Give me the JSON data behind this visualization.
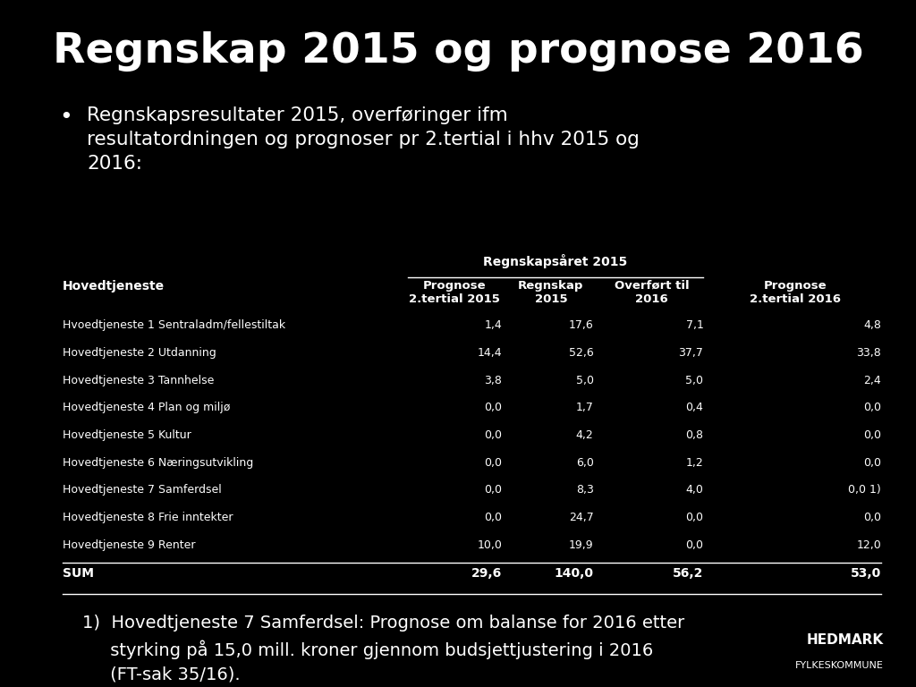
{
  "title": "Regnskap 2015 og prognose 2016",
  "bullet_text": "Regnskapsresultater 2015, overføringer ifm\nresultatordningen og prognoser pr 2.tertial i hhv 2015 og\n2016:",
  "table_header_main": "Regnskapsåret 2015",
  "rows": [
    [
      "Hvoedtjeneste 1 Sentraladm/fellestiltak",
      "1,4",
      "17,6",
      "7,1",
      "4,8"
    ],
    [
      "Hovedtjeneste 2 Utdanning",
      "14,4",
      "52,6",
      "37,7",
      "33,8"
    ],
    [
      "Hovedtjeneste 3 Tannhelse",
      "3,8",
      "5,0",
      "5,0",
      "2,4"
    ],
    [
      "Hovedtjeneste 4 Plan og miljø",
      "0,0",
      "1,7",
      "0,4",
      "0,0"
    ],
    [
      "Hovedtjeneste 5 Kultur",
      "0,0",
      "4,2",
      "0,8",
      "0,0"
    ],
    [
      "Hovedtjeneste 6 Næringsutvikling",
      "0,0",
      "6,0",
      "1,2",
      "0,0"
    ],
    [
      "Hovedtjeneste 7 Samferdsel",
      "0,0",
      "8,3",
      "4,0",
      "0,0 1)"
    ],
    [
      "Hovedtjeneste 8 Frie inntekter",
      "0,0",
      "24,7",
      "0,0",
      "0,0"
    ],
    [
      "Hovedtjeneste 9 Renter",
      "10,0",
      "19,9",
      "0,0",
      "12,0"
    ]
  ],
  "sum_row": [
    "SUM",
    "29,6",
    "140,0",
    "56,2",
    "53,0"
  ],
  "footnote": "1)  Hovedtjeneste 7 Samferdsel: Prognose om balanse for 2016 etter\n     styrking på 15,0 mill. kroner gjennom budsjettjustering i 2016\n     (FT-sak 35/16).",
  "logo_line1": "HEDMARK",
  "logo_line2": "FYLKESKOMMUNE",
  "bg_color": "#000000",
  "text_color": "#ffffff"
}
